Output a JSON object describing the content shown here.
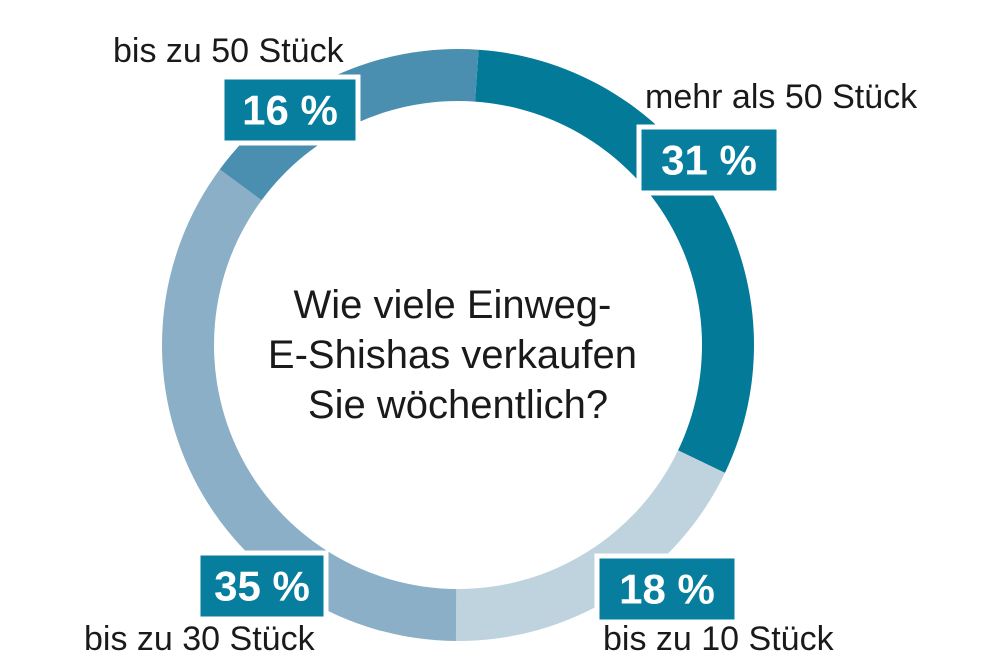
{
  "chart_data": {
    "type": "pie",
    "variant": "donut",
    "center_text": [
      "Wie viele Einweg-",
      "E-Shishas verkaufen",
      "Sie wöchentlich?"
    ],
    "slices": [
      {
        "label": "mehr als 50 Stück",
        "value": 31,
        "value_label": "31 %",
        "color": "#047a99"
      },
      {
        "label": "bis zu 10 Stück",
        "value": 18,
        "value_label": "18 %",
        "color": "#bfd3df"
      },
      {
        "label": "bis zu 30 Stück",
        "value": 35,
        "value_label": "35 %",
        "color": "#8aafc6"
      },
      {
        "label": "bis zu 50 Stück",
        "value": 16,
        "value_label": "16 %",
        "color": "#4a8fb0"
      }
    ],
    "box_color": "#077e9d"
  }
}
